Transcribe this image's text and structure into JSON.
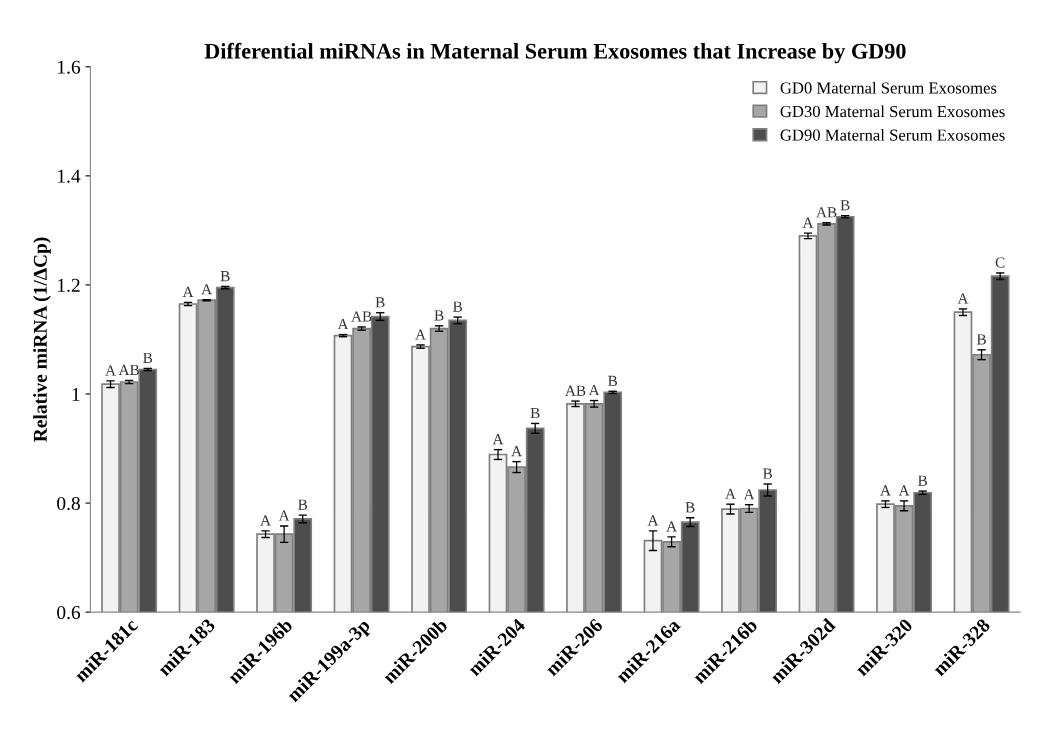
{
  "chart_data": {
    "type": "bar",
    "title": "Differential miRNAs in Maternal Serum Exosomes that Increase by GD90",
    "ylabel": "Relative miRNA (1/ΔCp)",
    "categories": [
      "miR-181c",
      "miR-183",
      "miR-196b",
      "miR-199a-3p",
      "miR-200b",
      "miR-204",
      "miR-206",
      "miR-216a",
      "miR-216b",
      "miR-302d",
      "miR-320",
      "miR-328"
    ],
    "series": [
      {
        "name": "GD0 Maternal Serum Exosomes",
        "color": "#f2f2f2",
        "values": [
          1.018,
          1.165,
          0.743,
          1.107,
          1.087,
          0.889,
          0.982,
          0.731,
          0.789,
          1.29,
          0.798,
          1.15
        ],
        "errors": [
          0.006,
          0.003,
          0.006,
          0.002,
          0.003,
          0.009,
          0.005,
          0.018,
          0.009,
          0.005,
          0.006,
          0.006
        ],
        "value_labels": [
          "A",
          "A",
          "A",
          "A",
          "A",
          "A",
          "AB",
          "A",
          "A",
          "A",
          "A",
          "A"
        ]
      },
      {
        "name": "GD30 Maternal Serum Exosomes",
        "color": "#a6a6a6",
        "values": [
          1.022,
          1.172,
          0.743,
          1.12,
          1.12,
          0.866,
          0.982,
          0.729,
          0.79,
          1.312,
          0.795,
          1.072
        ],
        "errors": [
          0.003,
          0.001,
          0.015,
          0.003,
          0.005,
          0.01,
          0.006,
          0.009,
          0.007,
          0.002,
          0.009,
          0.009
        ],
        "value_labels": [
          "AB",
          "A",
          "A",
          "AB",
          "B",
          "A",
          "A",
          "A",
          "A",
          "AB",
          "A",
          "B"
        ]
      },
      {
        "name": "GD90 Maternal Serum Exosomes",
        "color": "#4d4d4d",
        "values": [
          1.045,
          1.195,
          0.771,
          1.142,
          1.135,
          0.937,
          1.003,
          0.765,
          0.824,
          1.325,
          0.819,
          1.216
        ],
        "errors": [
          0.002,
          0.002,
          0.007,
          0.007,
          0.006,
          0.009,
          0.002,
          0.008,
          0.011,
          0.002,
          0.003,
          0.006
        ],
        "value_labels": [
          "B",
          "B",
          "B",
          "B",
          "B",
          "B",
          "B",
          "B",
          "B",
          "B",
          "B",
          "C"
        ]
      }
    ],
    "ylim": [
      0.6,
      1.6
    ],
    "yticks": [
      0.6,
      0.8,
      1,
      1.2,
      1.4,
      1.6
    ],
    "legend": "top right",
    "grid": false
  }
}
